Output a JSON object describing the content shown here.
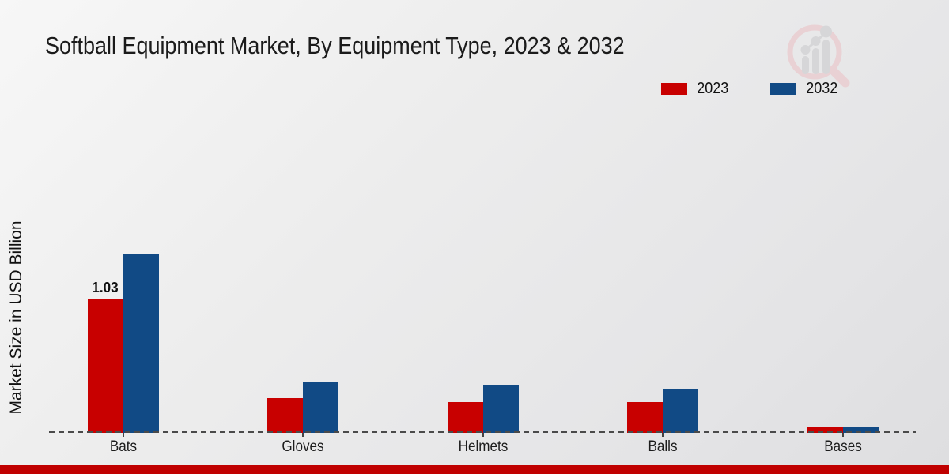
{
  "header": {
    "title": "Softball Equipment Market, By Equipment Type, 2023 & 2032"
  },
  "watermark": {
    "icon": "magnifier-bar-chart-logo",
    "circle_color": "#eacfd2",
    "bars_color": "#d5d5d7"
  },
  "chart_data": {
    "type": "bar",
    "title": "Softball Equipment Market, By Equipment Type, 2023 & 2032",
    "xlabel": "",
    "ylabel": "Market Size in USD Billion",
    "categories": [
      "Bats",
      "Gloves",
      "Helmets",
      "Balls",
      "Bases"
    ],
    "series": [
      {
        "name": "2023",
        "color": "#c80000",
        "values": [
          1.03,
          0.27,
          0.24,
          0.24,
          0.04
        ],
        "data_labels": [
          "1.03",
          "",
          "",
          "",
          ""
        ]
      },
      {
        "name": "2032",
        "color": "#114a85",
        "values": [
          1.38,
          0.39,
          0.37,
          0.34,
          0.05
        ],
        "data_labels": [
          "",
          "",
          "",
          "",
          ""
        ]
      }
    ],
    "ylim": [
      0,
      1.5
    ],
    "grid": false,
    "zero_line_style": "dashed",
    "legend_position": "top-right",
    "footer_bar_color": "#c00000"
  }
}
